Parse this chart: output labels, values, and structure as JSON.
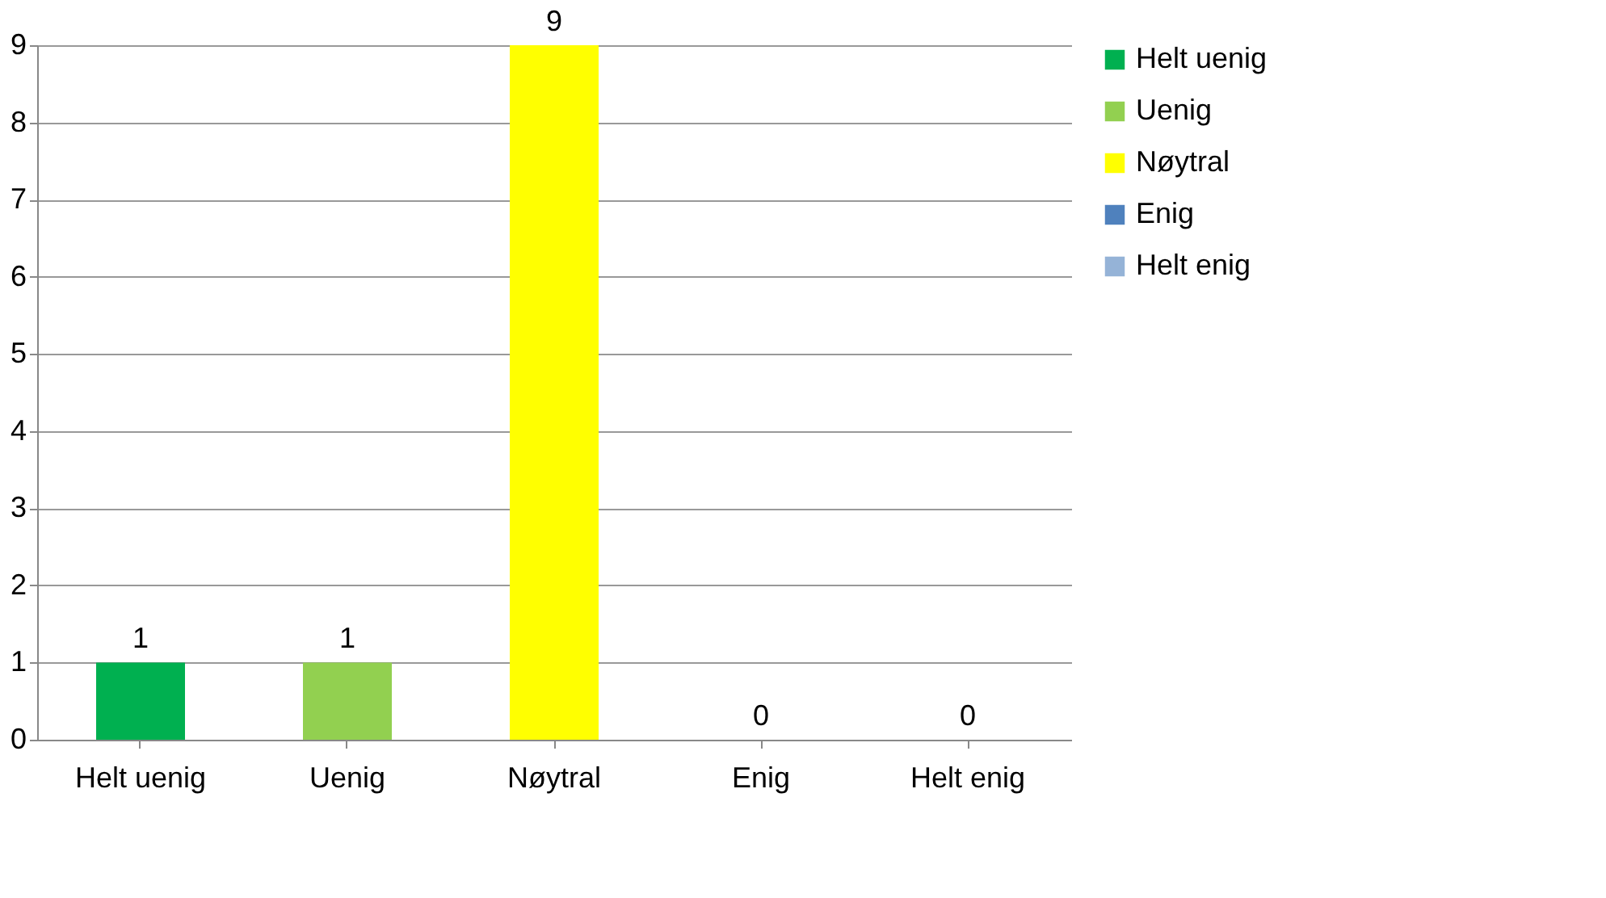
{
  "chart_data": {
    "type": "bar",
    "categories": [
      "Helt uenig",
      "Uenig",
      "Nøytral",
      "Enig",
      "Helt enig"
    ],
    "series": [
      {
        "name": "Helt uenig",
        "color": "#00b050",
        "values": [
          1,
          null,
          null,
          null,
          null
        ]
      },
      {
        "name": "Uenig",
        "color": "#92d050",
        "values": [
          null,
          1,
          null,
          null,
          null
        ]
      },
      {
        "name": "Nøytral",
        "color": "#ffff00",
        "values": [
          null,
          null,
          9,
          null,
          null
        ]
      },
      {
        "name": "Enig",
        "color": "#4f81bd",
        "values": [
          null,
          null,
          null,
          0,
          null
        ]
      },
      {
        "name": "Helt enig",
        "color": "#95b3d7",
        "values": [
          null,
          null,
          null,
          null,
          0
        ]
      }
    ],
    "ylim": [
      0,
      9
    ],
    "yticks": [
      0,
      1,
      2,
      3,
      4,
      5,
      6,
      7,
      8,
      9
    ],
    "grid": "y",
    "legend": "right",
    "data_labels": true
  }
}
